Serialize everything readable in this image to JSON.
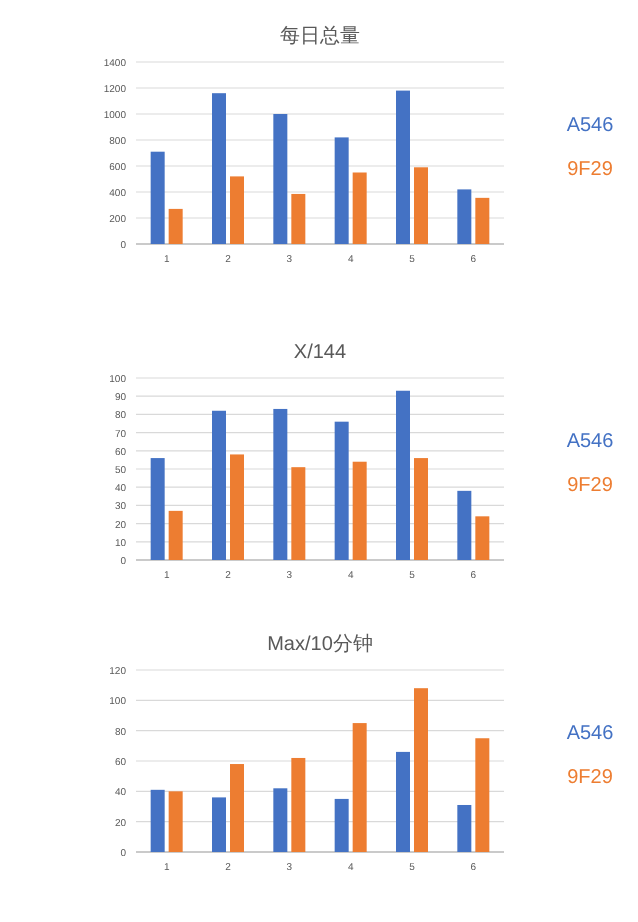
{
  "chart_data": [
    {
      "type": "bar",
      "title": "每日总量",
      "categories": [
        "1",
        "2",
        "3",
        "4",
        "5",
        "6"
      ],
      "series": [
        {
          "name": "A546",
          "color": "#4472c4",
          "values": [
            710,
            1160,
            1000,
            820,
            1180,
            420
          ]
        },
        {
          "name": "9F29",
          "color": "#ed7d31",
          "values": [
            270,
            520,
            385,
            550,
            590,
            355
          ]
        }
      ],
      "ylim": [
        0,
        1400
      ],
      "yticks": [
        0,
        200,
        400,
        600,
        800,
        1000,
        1200,
        1400
      ],
      "grid": "y",
      "legend": "right"
    },
    {
      "type": "bar",
      "title": "X/144",
      "categories": [
        "1",
        "2",
        "3",
        "4",
        "5",
        "6"
      ],
      "series": [
        {
          "name": "A546",
          "color": "#4472c4",
          "values": [
            56,
            82,
            83,
            76,
            93,
            38
          ]
        },
        {
          "name": "9F29",
          "color": "#ed7d31",
          "values": [
            27,
            58,
            51,
            54,
            56,
            24
          ]
        }
      ],
      "ylim": [
        0,
        100
      ],
      "yticks": [
        0,
        10,
        20,
        30,
        40,
        50,
        60,
        70,
        80,
        90,
        100
      ],
      "grid": "y",
      "legend": "right"
    },
    {
      "type": "bar",
      "title": "Max/10分钟",
      "categories": [
        "1",
        "2",
        "3",
        "4",
        "5",
        "6"
      ],
      "series": [
        {
          "name": "A546",
          "color": "#4472c4",
          "values": [
            41,
            36,
            42,
            35,
            66,
            31
          ]
        },
        {
          "name": "9F29",
          "color": "#ed7d31",
          "values": [
            40,
            58,
            62,
            85,
            108,
            75
          ]
        }
      ],
      "ylim": [
        0,
        120
      ],
      "yticks": [
        0,
        20,
        40,
        60,
        80,
        100,
        120
      ],
      "grid": "y",
      "legend": "right"
    }
  ]
}
